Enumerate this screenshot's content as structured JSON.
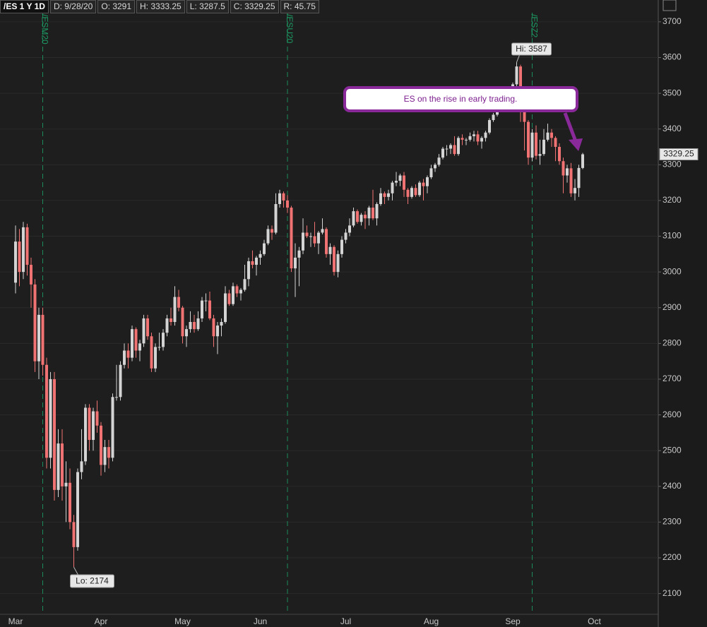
{
  "header": {
    "symbol": "/ES 1 Y 1D",
    "date": "D: 9/28/20",
    "open": "O: 3291",
    "high": "H: 3333.25",
    "low": "L: 3287.5",
    "close": "C: 3329.25",
    "range": "R: 45.75"
  },
  "chart_data": {
    "type": "candlestick",
    "annotation": "ES on the rise in early trading.",
    "high_label": "Hi: 3587",
    "low_label": "Lo: 2174",
    "up_color": "#d4d4d4",
    "down_color": "#f07272",
    "grid": true,
    "contract_rolls": [
      {
        "label": "/ESM20",
        "index": 7
      },
      {
        "label": "/ESU20",
        "index": 70
      },
      {
        "label": "/ESZ2",
        "index": 133
      }
    ],
    "ylim": [
      2042,
      3761
    ],
    "yticks": [
      2100,
      2200,
      2300,
      2400,
      2500,
      2600,
      2700,
      2800,
      2900,
      3000,
      3100,
      3200,
      3300,
      3400,
      3500,
      3600,
      3700
    ],
    "categories": [
      "Mar",
      null,
      null,
      null,
      null,
      null,
      null,
      null,
      null,
      null,
      null,
      null,
      null,
      null,
      null,
      null,
      null,
      null,
      null,
      null,
      null,
      null,
      "Apr",
      null,
      null,
      null,
      null,
      null,
      null,
      null,
      null,
      null,
      null,
      null,
      null,
      null,
      null,
      null,
      null,
      null,
      null,
      null,
      null,
      "May",
      null,
      null,
      null,
      null,
      null,
      null,
      null,
      null,
      null,
      null,
      null,
      null,
      null,
      null,
      null,
      null,
      null,
      null,
      null,
      "Jun",
      null,
      null,
      null,
      null,
      null,
      null,
      null,
      null,
      null,
      null,
      null,
      null,
      null,
      null,
      null,
      null,
      null,
      null,
      null,
      null,
      null,
      "Jul",
      null,
      null,
      null,
      null,
      null,
      null,
      null,
      null,
      null,
      null,
      null,
      null,
      null,
      null,
      null,
      null,
      null,
      null,
      null,
      null,
      null,
      "Aug",
      null,
      null,
      null,
      null,
      null,
      null,
      null,
      null,
      null,
      null,
      null,
      null,
      null,
      null,
      null,
      null,
      null,
      null,
      null,
      null,
      "Sep",
      null,
      null,
      null,
      null,
      null,
      null,
      null,
      null,
      null,
      null,
      null,
      null,
      null,
      null,
      null,
      null,
      null,
      null,
      null,
      null,
      "Oct"
    ],
    "open": [
      2970,
      3085,
      3000,
      3125,
      3020,
      2965,
      2750,
      2880,
      2740,
      2480,
      2700,
      2390,
      2520,
      2400,
      2410,
      2300,
      2230,
      2440,
      2470,
      2620,
      2530,
      2610,
      2570,
      2460,
      2510,
      2480,
      2650,
      2650,
      2740,
      2780,
      2760,
      2840,
      2780,
      2800,
      2870,
      2820,
      2730,
      2790,
      2790,
      2830,
      2870,
      2860,
      2930,
      2900,
      2820,
      2840,
      2860,
      2840,
      2870,
      2920,
      2920,
      2870,
      2820,
      2850,
      2860,
      2940,
      2910,
      2960,
      2940,
      2950,
      2980,
      3030,
      3020,
      3040,
      3050,
      3080,
      3120,
      3110,
      3190,
      3220,
      3200,
      3180,
      3010,
      3040,
      3060,
      3110,
      3100,
      3100,
      3080,
      3110,
      3120,
      3050,
      3070,
      3000,
      3050,
      3090,
      3110,
      3130,
      3170,
      3140,
      3160,
      3150,
      3180,
      3150,
      3190,
      3220,
      3210,
      3220,
      3250,
      3255,
      3270,
      3230,
      3210,
      3235,
      3215,
      3250,
      3240,
      3265,
      3290,
      3300,
      3320,
      3345,
      3345,
      3355,
      3330,
      3375,
      3370,
      3370,
      3380,
      3385,
      3365,
      3375,
      3390,
      3425,
      3440,
      3475,
      3480,
      3500,
      3495,
      3525,
      3575,
      3450,
      3420,
      3320,
      3390,
      3325,
      3330,
      3370,
      3390,
      3375,
      3350,
      3310,
      3270,
      3290,
      3220,
      3235,
      3291,
      null,
      null,
      null
    ],
    "high": [
      3130,
      3120,
      3140,
      3135,
      3040,
      2980,
      2900,
      2900,
      2760,
      2720,
      2720,
      2560,
      2560,
      2470,
      2450,
      2320,
      2450,
      2560,
      2630,
      2630,
      2620,
      2640,
      2580,
      2530,
      2530,
      2660,
      2740,
      2750,
      2800,
      2800,
      2850,
      2845,
      2810,
      2880,
      2880,
      2830,
      2800,
      2830,
      2840,
      2880,
      2900,
      2960,
      2950,
      2905,
      2850,
      2890,
      2880,
      2890,
      2930,
      2940,
      2945,
      2880,
      2860,
      2870,
      2960,
      2950,
      2970,
      2965,
      2955,
      3020,
      3040,
      3060,
      3045,
      3060,
      3090,
      3130,
      3130,
      3220,
      3230,
      3225,
      3215,
      3185,
      3080,
      3070,
      3150,
      3130,
      3110,
      3140,
      3115,
      3150,
      3125,
      3080,
      3075,
      3060,
      3100,
      3120,
      3150,
      3180,
      3175,
      3165,
      3170,
      3185,
      3230,
      3195,
      3235,
      3225,
      3230,
      3255,
      3280,
      3275,
      3280,
      3235,
      3240,
      3245,
      3255,
      3260,
      3270,
      3300,
      3305,
      3330,
      3350,
      3355,
      3360,
      3380,
      3380,
      3385,
      3375,
      3390,
      3395,
      3395,
      3380,
      3395,
      3430,
      3445,
      3480,
      3495,
      3505,
      3515,
      3530,
      3587,
      3580,
      3460,
      3425,
      3400,
      3410,
      3370,
      3400,
      3415,
      3400,
      3380,
      3360,
      3320,
      3300,
      3305,
      3260,
      3300,
      3333.25,
      null,
      null,
      null
    ],
    "low": [
      2940,
      2960,
      2980,
      2990,
      2900,
      2720,
      2700,
      2710,
      2450,
      2450,
      2360,
      2370,
      2360,
      2300,
      2280,
      2174,
      2220,
      2420,
      2460,
      2500,
      2500,
      2550,
      2430,
      2440,
      2450,
      2470,
      2640,
      2640,
      2730,
      2730,
      2750,
      2760,
      2750,
      2790,
      2810,
      2720,
      2720,
      2780,
      2780,
      2820,
      2850,
      2850,
      2890,
      2800,
      2790,
      2830,
      2830,
      2835,
      2860,
      2890,
      2865,
      2790,
      2770,
      2820,
      2855,
      2905,
      2905,
      2930,
      2920,
      2945,
      2960,
      3010,
      2990,
      3020,
      3045,
      3075,
      3090,
      3105,
      3180,
      3180,
      3165,
      3000,
      2930,
      2960,
      3050,
      3095,
      3070,
      3070,
      3050,
      3105,
      3040,
      3020,
      2990,
      2985,
      3040,
      3080,
      3100,
      3125,
      3135,
      3130,
      3120,
      3130,
      3145,
      3130,
      3185,
      3190,
      3200,
      3200,
      3240,
      3240,
      3210,
      3190,
      3205,
      3210,
      3210,
      3200,
      3220,
      3260,
      3280,
      3295,
      3315,
      3325,
      3330,
      3325,
      3325,
      3355,
      3355,
      3365,
      3365,
      3355,
      3345,
      3365,
      3385,
      3420,
      3435,
      3455,
      3475,
      3485,
      3480,
      3520,
      3420,
      3340,
      3300,
      3310,
      3315,
      3300,
      3325,
      3365,
      3350,
      3310,
      3300,
      3220,
      3250,
      3210,
      3200,
      3210,
      3287.5,
      null,
      null,
      null
    ],
    "close": [
      3085,
      3000,
      3125,
      3020,
      2965,
      2750,
      2880,
      2740,
      2480,
      2700,
      2390,
      2520,
      2400,
      2410,
      2300,
      2230,
      2440,
      2470,
      2620,
      2530,
      2610,
      2570,
      2460,
      2510,
      2480,
      2650,
      2650,
      2740,
      2780,
      2760,
      2840,
      2780,
      2800,
      2870,
      2820,
      2730,
      2790,
      2790,
      2830,
      2870,
      2860,
      2930,
      2900,
      2820,
      2840,
      2860,
      2840,
      2870,
      2920,
      2920,
      2870,
      2820,
      2850,
      2860,
      2940,
      2910,
      2960,
      2940,
      2950,
      2980,
      3030,
      3020,
      3040,
      3050,
      3080,
      3120,
      3110,
      3190,
      3220,
      3200,
      3180,
      3010,
      3040,
      3060,
      3110,
      3100,
      3100,
      3080,
      3110,
      3120,
      3050,
      3070,
      3000,
      3050,
      3090,
      3110,
      3130,
      3170,
      3140,
      3160,
      3150,
      3180,
      3150,
      3190,
      3220,
      3210,
      3220,
      3250,
      3255,
      3270,
      3230,
      3210,
      3235,
      3215,
      3250,
      3240,
      3265,
      3290,
      3300,
      3320,
      3345,
      3345,
      3355,
      3330,
      3375,
      3370,
      3370,
      3380,
      3385,
      3365,
      3375,
      3390,
      3425,
      3440,
      3475,
      3480,
      3500,
      3495,
      3525,
      3575,
      3450,
      3420,
      3320,
      3390,
      3325,
      3330,
      3370,
      3390,
      3375,
      3350,
      3310,
      3270,
      3290,
      3220,
      3235,
      3291,
      3329.25,
      null,
      null,
      null
    ]
  }
}
